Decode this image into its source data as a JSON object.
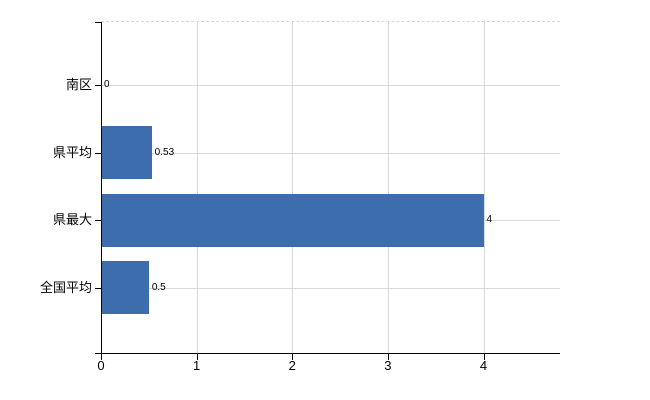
{
  "chart_data": {
    "type": "bar",
    "orientation": "horizontal",
    "title": "",
    "categories": [
      "南区",
      "県平均",
      "県最大",
      "全国平均"
    ],
    "values": [
      0,
      0.53,
      4,
      0.5
    ],
    "data_labels": [
      "0",
      "0.53",
      "4",
      "0.5"
    ],
    "series": [
      {
        "name": "",
        "values": [
          0,
          0.53,
          4,
          0.5
        ]
      }
    ],
    "x_ticks": [
      0,
      1,
      2,
      3,
      4
    ],
    "x_tick_labels": [
      "0",
      "1",
      "2",
      "3",
      "4"
    ],
    "xlim": [
      0,
      4.8
    ],
    "xlabel": "",
    "ylabel": "",
    "grid": true,
    "legend": false,
    "colors": {
      "bar": "#3d6dad",
      "gridline": "#d7dbd7",
      "axis": "#000000",
      "text": "#000000",
      "background": "#ffffff"
    }
  }
}
